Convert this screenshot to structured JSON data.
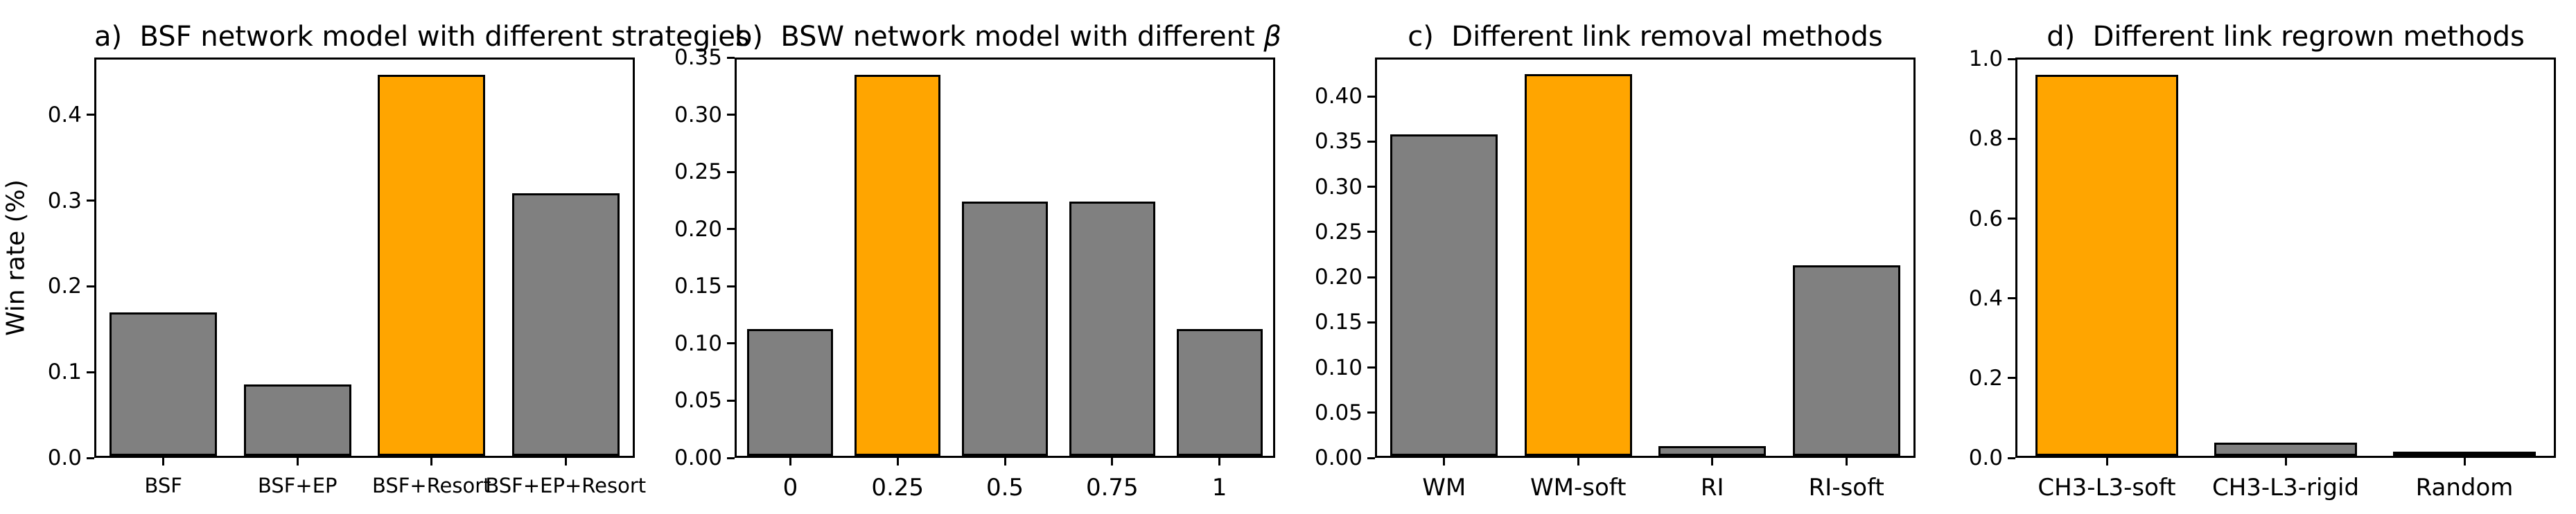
{
  "figure": {
    "ylabel": "Win rate (%)",
    "background_color": "#ffffff",
    "text_color": "#000000",
    "highlight_color": "#ffa500",
    "bar_color": "#808080",
    "edge_color": "#000000"
  },
  "chart_data": [
    {
      "type": "bar",
      "title": "a)  BSF network model with different strategies",
      "categories": [
        "BSF",
        "BSF+EP",
        "BSF+Resort",
        "BSF+EP+Resort"
      ],
      "values": [
        0.167,
        0.083,
        0.444,
        0.306
      ],
      "highlight_index": 2,
      "highlight_color": "#ffa500",
      "bar_color": "#808080",
      "xlabel": "",
      "ylabel": "Win rate (%)",
      "ylim": [
        0,
        0.467
      ],
      "ytick_values": [
        0.0,
        0.1,
        0.2,
        0.3,
        0.4
      ],
      "ytick_labels": [
        "0.0",
        "0.1",
        "0.2",
        "0.3",
        "0.4"
      ],
      "grid": false,
      "legend": "none"
    },
    {
      "type": "bar",
      "title": "b)  BSW network model with different β",
      "categories": [
        "0",
        "0.25",
        "0.5",
        "0.75",
        "1"
      ],
      "values": [
        0.111,
        0.333,
        0.222,
        0.222,
        0.111
      ],
      "highlight_index": 1,
      "highlight_color": "#ffa500",
      "bar_color": "#808080",
      "xlabel": "",
      "ylabel": "",
      "ylim": [
        0,
        0.35
      ],
      "ytick_values": [
        0.0,
        0.05,
        0.1,
        0.15,
        0.2,
        0.25,
        0.3,
        0.35
      ],
      "ytick_labels": [
        "0.00",
        "0.05",
        "0.10",
        "0.15",
        "0.20",
        "0.25",
        "0.30",
        "0.35"
      ],
      "grid": false,
      "legend": "none"
    },
    {
      "type": "bar",
      "title": "c)  Different link removal methods",
      "categories": [
        "WM",
        "WM-soft",
        "RI",
        "RI-soft"
      ],
      "values": [
        0.356,
        0.422,
        0.011,
        0.211
      ],
      "highlight_index": 1,
      "highlight_color": "#ffa500",
      "bar_color": "#808080",
      "xlabel": "",
      "ylabel": "",
      "ylim": [
        0,
        0.443
      ],
      "ytick_values": [
        0.0,
        0.05,
        0.1,
        0.15,
        0.2,
        0.25,
        0.3,
        0.35,
        0.4
      ],
      "ytick_labels": [
        "0.00",
        "0.05",
        "0.10",
        "0.15",
        "0.20",
        "0.25",
        "0.30",
        "0.35",
        "0.40"
      ],
      "grid": false,
      "legend": "none"
    },
    {
      "type": "bar",
      "title": "d)  Different link regrown methods",
      "categories": [
        "CH3-L3-soft",
        "CH3-L3-rigid",
        "Random"
      ],
      "values": [
        0.956,
        0.033,
        0.011
      ],
      "highlight_index": 0,
      "highlight_color": "#ffa500",
      "bar_color": "#808080",
      "xlabel": "",
      "ylabel": "",
      "ylim": [
        0,
        1.004
      ],
      "ytick_values": [
        0.0,
        0.2,
        0.4,
        0.6,
        0.8,
        1.0
      ],
      "ytick_labels": [
        "0.0",
        "0.2",
        "0.4",
        "0.6",
        "0.8",
        "1.0"
      ],
      "grid": false,
      "legend": "none"
    }
  ]
}
